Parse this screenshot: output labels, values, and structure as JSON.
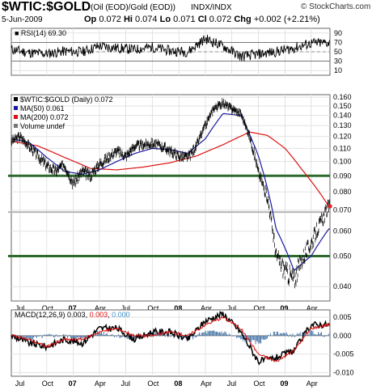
{
  "header": {
    "symbol": "$WTIC:$GOLD",
    "description": "(Oil (EOD)/Gold (EOD))",
    "exchange": "INDX/INDX",
    "brand": "© StockCharts.com",
    "date": "5-Jun-2009",
    "op_label": "Op",
    "op": "0.072",
    "hi_label": "Hi",
    "hi": "0.074",
    "lo_label": "Lo",
    "lo": "0.071",
    "cl_label": "Cl",
    "cl": "0.072",
    "chg_label": "Chg",
    "chg": "+0.002 (+2.21%)"
  },
  "colors": {
    "price": "#000000",
    "ma50": "#1a1aa0",
    "ma200": "#dd1111",
    "support_line": "#2d6a2d",
    "ref_line": "#b5b5b5",
    "macd_line": "#000000",
    "macd_signal": "#dd1111",
    "macd_hist": "#4a77a8"
  },
  "chart_data": [
    {
      "type": "line",
      "panel": "rsi",
      "legend": "RSI(14) 69.30",
      "y_ticks": [
        10,
        30,
        50,
        70,
        90
      ],
      "ylim": [
        0,
        100
      ],
      "grid": true,
      "reference_levels": [
        30,
        70
      ],
      "series": [
        {
          "name": "RSI(14)",
          "x": [
            "2006-06",
            "2006-08",
            "2006-10",
            "2006-12",
            "2007-02",
            "2007-04",
            "2007-06",
            "2007-08",
            "2007-10",
            "2007-12",
            "2008-02",
            "2008-04",
            "2008-06",
            "2008-08",
            "2008-10",
            "2008-12",
            "2009-02",
            "2009-04",
            "2009-06"
          ],
          "values": [
            55,
            48,
            46,
            51,
            50,
            62,
            58,
            55,
            60,
            52,
            50,
            78,
            62,
            40,
            45,
            50,
            58,
            68,
            69.3
          ]
        }
      ]
    },
    {
      "type": "line",
      "panel": "price",
      "legend": [
        "$WTIC:$GOLD (Daily) 0.072",
        "MA(50) 0.061",
        "MA(200) 0.072",
        "Volume undef"
      ],
      "y_ticks": [
        0.04,
        0.05,
        0.06,
        0.07,
        0.08,
        0.09,
        0.1,
        0.11,
        0.12,
        0.13,
        0.14,
        0.15,
        0.16
      ],
      "ylim": [
        0.036,
        0.163
      ],
      "log_scale": true,
      "horizontal_lines": [
        0.09,
        0.069,
        0.05
      ],
      "x_ticks": [
        "Jul",
        "Oct",
        "07",
        "Apr",
        "Jul",
        "Oct",
        "08",
        "Apr",
        "Jul",
        "Oct",
        "09",
        "Apr"
      ],
      "series": [
        {
          "name": "$WTIC:$GOLD",
          "x": [
            "2006-06",
            "2006-07",
            "2006-08",
            "2006-09",
            "2006-10",
            "2006-11",
            "2006-12",
            "2007-01",
            "2007-02",
            "2007-03",
            "2007-04",
            "2007-05",
            "2007-06",
            "2007-07",
            "2007-08",
            "2007-09",
            "2007-10",
            "2007-11",
            "2007-12",
            "2008-01",
            "2008-02",
            "2008-03",
            "2008-04",
            "2008-05",
            "2008-06",
            "2008-07",
            "2008-08",
            "2008-09",
            "2008-10",
            "2008-11",
            "2008-12",
            "2009-01",
            "2009-02",
            "2009-03",
            "2009-04",
            "2009-05",
            "2009-06"
          ],
          "values": [
            0.116,
            0.12,
            0.112,
            0.104,
            0.097,
            0.093,
            0.098,
            0.085,
            0.093,
            0.09,
            0.098,
            0.103,
            0.108,
            0.104,
            0.112,
            0.113,
            0.114,
            0.112,
            0.108,
            0.104,
            0.103,
            0.112,
            0.13,
            0.148,
            0.153,
            0.147,
            0.142,
            0.12,
            0.092,
            0.077,
            0.05,
            0.045,
            0.042,
            0.049,
            0.055,
            0.063,
            0.072
          ]
        },
        {
          "name": "MA(50)",
          "x": [
            "2006-06",
            "2006-08",
            "2006-10",
            "2006-12",
            "2007-02",
            "2007-04",
            "2007-06",
            "2007-08",
            "2007-10",
            "2007-12",
            "2008-02",
            "2008-04",
            "2008-06",
            "2008-08",
            "2008-10",
            "2008-12",
            "2009-02",
            "2009-04",
            "2009-06"
          ],
          "values": [
            0.118,
            0.115,
            0.103,
            0.093,
            0.091,
            0.094,
            0.1,
            0.106,
            0.11,
            0.109,
            0.106,
            0.118,
            0.142,
            0.14,
            0.104,
            0.061,
            0.045,
            0.05,
            0.061
          ]
        },
        {
          "name": "MA(200)",
          "x": [
            "2006-06",
            "2006-09",
            "2006-12",
            "2007-03",
            "2007-06",
            "2007-09",
            "2007-12",
            "2008-03",
            "2008-06",
            "2008-09",
            "2008-11",
            "2009-01",
            "2009-03",
            "2009-06"
          ],
          "values": [
            0.116,
            0.112,
            0.103,
            0.095,
            0.094,
            0.096,
            0.099,
            0.104,
            0.113,
            0.124,
            0.121,
            0.11,
            0.094,
            0.072
          ]
        }
      ]
    },
    {
      "type": "line",
      "panel": "macd",
      "legend": "MACD(12,26,9)",
      "legend_values": [
        "0.003",
        "0.003",
        "0.000"
      ],
      "y_ticks": [
        0.005,
        0.0,
        -0.005,
        -0.01
      ],
      "ylim": [
        -0.011,
        0.007
      ],
      "series": [
        {
          "name": "MACD",
          "x": [
            "2006-06",
            "2006-08",
            "2006-10",
            "2006-12",
            "2007-02",
            "2007-04",
            "2007-06",
            "2007-08",
            "2007-10",
            "2007-12",
            "2008-02",
            "2008-04",
            "2008-06",
            "2008-08",
            "2008-10",
            "2008-12",
            "2009-02",
            "2009-04",
            "2009-06"
          ],
          "values": [
            0.0,
            -0.002,
            -0.003,
            -0.001,
            -0.002,
            0.002,
            0.002,
            -0.001,
            0.001,
            0.001,
            -0.001,
            0.004,
            0.006,
            0.001,
            -0.007,
            -0.006,
            -0.004,
            0.003,
            0.003
          ]
        },
        {
          "name": "Signal",
          "x": [
            "2006-06",
            "2006-08",
            "2006-10",
            "2006-12",
            "2007-02",
            "2007-04",
            "2007-06",
            "2007-08",
            "2007-10",
            "2007-12",
            "2008-02",
            "2008-04",
            "2008-06",
            "2008-08",
            "2008-10",
            "2008-12",
            "2009-02",
            "2009-04",
            "2009-06"
          ],
          "values": [
            0.0,
            -0.001,
            -0.003,
            -0.001,
            -0.001,
            0.001,
            0.002,
            0.0,
            0.0,
            0.001,
            0.0,
            0.003,
            0.005,
            0.002,
            -0.005,
            -0.007,
            -0.004,
            0.002,
            0.003
          ]
        },
        {
          "name": "Histogram",
          "x": [
            "2006-06",
            "2006-08",
            "2006-10",
            "2006-12",
            "2007-02",
            "2007-04",
            "2007-06",
            "2007-08",
            "2007-10",
            "2007-12",
            "2008-02",
            "2008-04",
            "2008-06",
            "2008-08",
            "2008-10",
            "2008-12",
            "2009-02",
            "2009-04",
            "2009-06"
          ],
          "values": [
            0.0,
            -0.001,
            0.0,
            0.0,
            -0.001,
            0.001,
            0.0,
            -0.001,
            0.001,
            0.0,
            -0.001,
            0.001,
            0.001,
            -0.001,
            -0.002,
            0.001,
            0.0,
            0.001,
            0.0
          ]
        }
      ]
    }
  ]
}
